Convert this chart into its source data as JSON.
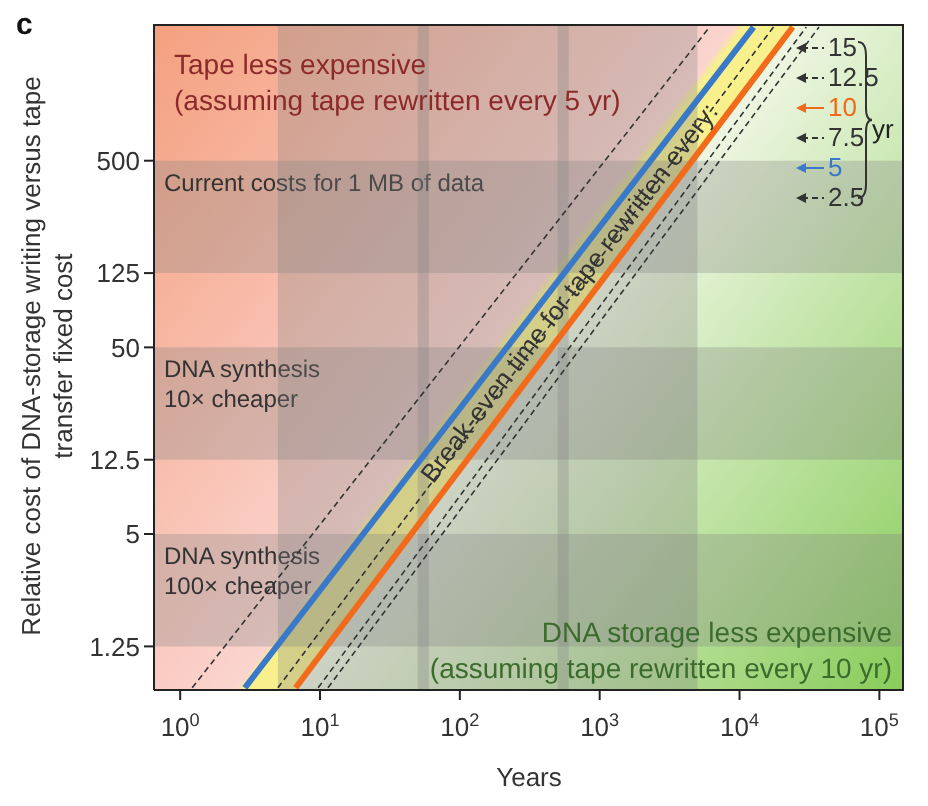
{
  "chart_data": {
    "type": "line",
    "xlabel": "Years",
    "ylabel": "Relative cost of DNA-storage writing versus tape transfer fixed cost",
    "legend_title": "Break-even time for tape rewritten every:",
    "log": "xy",
    "xlim": [
      0.65,
      150000
    ],
    "ylim": [
      0.73,
      2700
    ],
    "xticks": [
      {
        "value": 1,
        "label": "10$^{0}$"
      },
      {
        "value": 10,
        "label": "10$^{1}$"
      },
      {
        "value": 100,
        "label": "10$^{2}$"
      },
      {
        "value": 1000,
        "label": "10$^{3}$"
      },
      {
        "value": 10000,
        "label": "10$^{4}$"
      },
      {
        "value": 100000,
        "label": "10$^{5}$"
      }
    ],
    "yticks": [
      1.25,
      5,
      12.5,
      50,
      125,
      500
    ],
    "legend": "top right",
    "series": [
      {
        "name": "15",
        "color": "#333333",
        "line_style": "dashed",
        "x": [
          11.4,
          37000
        ],
        "values": [
          0.75,
          2600
        ]
      },
      {
        "name": "12.5",
        "color": "#333333",
        "line_style": "dashed",
        "x": [
          9.7,
          30000
        ],
        "values": [
          0.75,
          2600
        ]
      },
      {
        "name": "10",
        "color": "#f26a1b",
        "line_style": "solid",
        "x": [
          6.7,
          24000
        ],
        "values": [
          0.75,
          2600
        ]
      },
      {
        "name": "7.5",
        "color": "#333333",
        "line_style": "dashed",
        "x": [
          5,
          17500
        ],
        "values": [
          0.75,
          2600
        ]
      },
      {
        "name": "5",
        "color": "#3a78c8",
        "line_style": "solid",
        "x": [
          2.9,
          12600
        ],
        "values": [
          0.75,
          2600
        ]
      },
      {
        "name": "2.5",
        "color": "#333333",
        "line_style": "dashed",
        "x": [
          1.22,
          6100
        ],
        "values": [
          0.75,
          2600
        ]
      }
    ],
    "bands": [
      {
        "axis": "y",
        "from": 125,
        "to": 500,
        "label": "Current costs for 1 MB of data",
        "color": "#808080"
      },
      {
        "axis": "y",
        "from": 12.5,
        "to": 50,
        "label": "DNA synthesis 10× cheaper",
        "color": "#808080"
      },
      {
        "axis": "y",
        "from": 1.25,
        "to": 5,
        "label": "DNA synthesis 100× cheaper",
        "color": "#808080"
      },
      {
        "axis": "x",
        "from": 5,
        "to": 60,
        "color": "#808080"
      },
      {
        "axis": "x",
        "from": 50,
        "to": 600,
        "color": "#808080"
      },
      {
        "axis": "x",
        "from": 500,
        "to": 5000,
        "color": "#808080"
      }
    ],
    "annotations": [
      "c",
      "Tape less expensive",
      "(assuming tape rewritten every 5 yr)",
      "DNA storage less expensive",
      "(assuming tape rewritten every 10 yr)",
      "yr"
    ]
  }
}
